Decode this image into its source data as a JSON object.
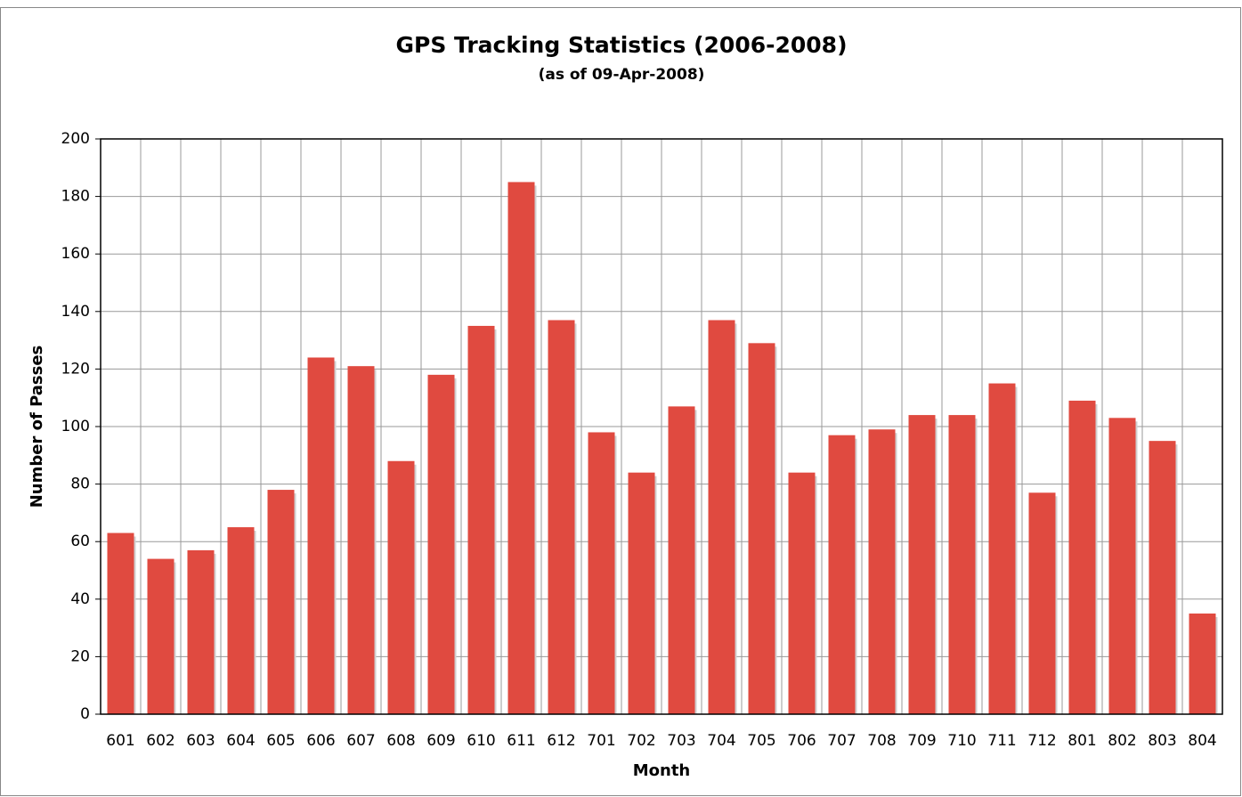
{
  "chart_data": {
    "type": "bar",
    "title": "GPS Tracking Statistics (2006-2008)",
    "subtitle": "(as of 09-Apr-2008)",
    "x_label": "Month",
    "y_label": "Number of Passes",
    "categories": [
      "601",
      "602",
      "603",
      "604",
      "605",
      "606",
      "607",
      "608",
      "609",
      "610",
      "611",
      "612",
      "701",
      "702",
      "703",
      "704",
      "705",
      "706",
      "707",
      "708",
      "709",
      "710",
      "711",
      "712",
      "801",
      "802",
      "803",
      "804"
    ],
    "values": [
      63,
      54,
      57,
      65,
      78,
      124,
      121,
      88,
      118,
      135,
      185,
      137,
      98,
      84,
      107,
      137,
      129,
      84,
      97,
      99,
      104,
      104,
      115,
      77,
      109,
      103,
      95,
      35
    ],
    "color": "#e04a40",
    "ylim": [
      0,
      200
    ],
    "yticks": [
      0,
      20,
      40,
      60,
      80,
      100,
      120,
      140,
      160,
      180,
      200
    ],
    "grid": true
  }
}
